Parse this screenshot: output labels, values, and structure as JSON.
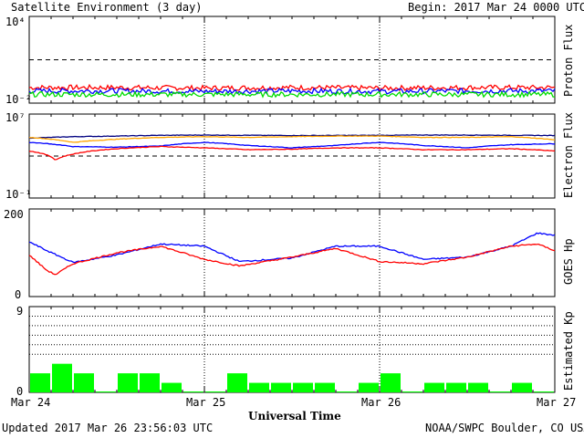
{
  "header": {
    "title": "Satellite Environment (3 day)",
    "begin": "Begin:  2017 Mar 24 0000 UTC"
  },
  "footer": {
    "updated": "Updated 2017 Mar 26 23:56:03 UTC",
    "credit": "NOAA/SWPC Boulder, CO USA"
  },
  "chart_data": [
    {
      "type": "line",
      "title": "",
      "ylabel": "Proton Flux",
      "yscale": "log",
      "ylim": [
        0.01,
        10000
      ],
      "ytick_labels": [
        "10⁴",
        "10⁻²"
      ],
      "threshold": 10,
      "grid": "day lines at Mar 25 and Mar 26",
      "series": [
        {
          "color": "#ff0000",
          "x": [
            0,
            0.5,
            1,
            1.5,
            2,
            2.5,
            3
          ],
          "values": [
            0.12,
            0.12,
            0.11,
            0.12,
            0.11,
            0.12,
            0.12
          ]
        },
        {
          "color": "#0000ff",
          "x": [
            0,
            0.5,
            1,
            1.5,
            2,
            2.5,
            3
          ],
          "values": [
            0.07,
            0.07,
            0.065,
            0.07,
            0.065,
            0.07,
            0.07
          ]
        },
        {
          "color": "#00dd00",
          "x": [
            0,
            0.5,
            1,
            1.5,
            2,
            2.5,
            3
          ],
          "values": [
            0.04,
            0.04,
            0.04,
            0.04,
            0.04,
            0.04,
            0.04
          ]
        }
      ]
    },
    {
      "type": "line",
      "title": "",
      "ylabel": "Electron Flux",
      "yscale": "log",
      "ylim": [
        0.1,
        10000000
      ],
      "ytick_labels": [
        "10⁷",
        "10⁻¹"
      ],
      "threshold": 1000,
      "series": [
        {
          "color": "#000080",
          "x": [
            0,
            0.25,
            0.5,
            0.75,
            1,
            1.25,
            1.5,
            1.75,
            2,
            2.25,
            2.5,
            2.75,
            3
          ],
          "values": [
            50000,
            70000,
            80000,
            95000,
            100000,
            95000,
            90000,
            92000,
            95000,
            100000,
            100000,
            95000,
            90000
          ]
        },
        {
          "color": "#ffa500",
          "x": [
            0,
            0.25,
            0.5,
            0.75,
            1,
            1.25,
            1.5,
            1.75,
            2,
            2.25,
            2.5,
            2.75,
            3
          ],
          "values": [
            60000,
            20000,
            40000,
            60000,
            70000,
            60000,
            70000,
            80000,
            80000,
            60000,
            60000,
            70000,
            35000
          ]
        },
        {
          "color": "#0000ff",
          "x": [
            0,
            0.25,
            0.5,
            0.75,
            1,
            1.25,
            1.5,
            1.75,
            2,
            2.25,
            2.5,
            2.75,
            3
          ],
          "values": [
            20000,
            8000,
            7000,
            9000,
            20000,
            10000,
            6000,
            10000,
            20000,
            10000,
            6000,
            12000,
            15000
          ]
        },
        {
          "color": "#ff0000",
          "x": [
            0,
            0.15,
            0.25,
            0.5,
            0.75,
            1,
            1.25,
            1.5,
            1.75,
            2,
            2.25,
            2.5,
            2.75,
            3
          ],
          "values": [
            3000,
            400,
            1500,
            5000,
            8000,
            6000,
            4000,
            4500,
            6000,
            6000,
            4000,
            4000,
            5000,
            3000
          ]
        }
      ]
    },
    {
      "type": "line",
      "title": "",
      "ylabel": "GOES Hp",
      "ylim": [
        0,
        200
      ],
      "ytick_labels": [
        "200",
        "0"
      ],
      "series": [
        {
          "color": "#0000ff",
          "x": [
            0,
            0.1,
            0.25,
            0.5,
            0.75,
            1,
            1.2,
            1.5,
            1.75,
            2,
            2.25,
            2.5,
            2.75,
            2.9,
            3
          ],
          "values": [
            125,
            105,
            78,
            95,
            120,
            115,
            80,
            88,
            115,
            115,
            85,
            90,
            115,
            145,
            140
          ]
        },
        {
          "color": "#ff0000",
          "x": [
            0,
            0.1,
            0.15,
            0.25,
            0.5,
            0.75,
            1,
            1.2,
            1.5,
            1.75,
            2,
            2.25,
            2.5,
            2.75,
            2.9,
            3
          ],
          "values": [
            95,
            60,
            50,
            75,
            100,
            115,
            85,
            70,
            90,
            110,
            80,
            75,
            90,
            115,
            120,
            105
          ]
        }
      ]
    },
    {
      "type": "bar",
      "title": "",
      "ylabel": "Estimated Kp",
      "ylim": [
        0,
        9
      ],
      "ytick_labels": [
        "9",
        "0"
      ],
      "xlabel": "Universal Time",
      "x_tick_labels": [
        "Mar 24",
        "Mar 25",
        "Mar 26",
        "Mar 27"
      ],
      "values": [
        2,
        3,
        2,
        0,
        2,
        2,
        1,
        0,
        0,
        2,
        1,
        1,
        1,
        1,
        0,
        1,
        2,
        0,
        1,
        1,
        1,
        0,
        1,
        0
      ],
      "colors": {
        "bar": "#00ff00",
        "reference": "#000000"
      }
    }
  ]
}
